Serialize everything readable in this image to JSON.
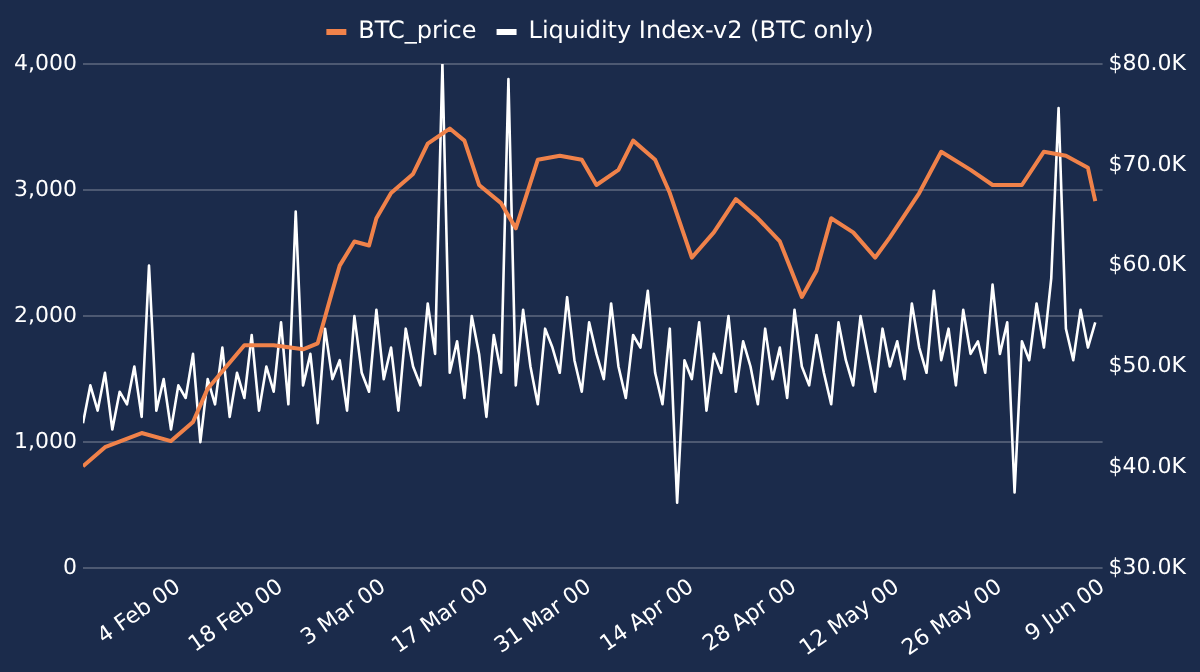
{
  "chart_data": {
    "type": "line",
    "legend": "top",
    "grid": "y",
    "marker": "none",
    "line_style": "solid",
    "xlim": [
      "--01-22",
      "--06-09"
    ],
    "xticks": [
      {
        "value": "--02-04",
        "label": "4 Feb 00"
      },
      {
        "value": "--02-18",
        "label": "18 Feb 00"
      },
      {
        "value": "--03-03",
        "label": "3 Mar 00"
      },
      {
        "value": "--03-17",
        "label": "17 Mar 00"
      },
      {
        "value": "--03-31",
        "label": "31 Mar 00"
      },
      {
        "value": "--04-14",
        "label": "14 Apr 00"
      },
      {
        "value": "--04-28",
        "label": "28 Apr 00"
      },
      {
        "value": "--05-12",
        "label": "12 May 00"
      },
      {
        "value": "--05-26",
        "label": "26 May 00"
      },
      {
        "value": "--06-09",
        "label": "9 Jun 00"
      }
    ],
    "ylim": [
      0,
      4000
    ],
    "yticks": [
      0,
      {
        "value": 1000,
        "label": "1,000"
      },
      {
        "value": 2000,
        "label": "2,000"
      },
      {
        "value": 3000,
        "label": "3,000"
      },
      {
        "value": 4000,
        "label": "4,000"
      }
    ],
    "y2lim": [
      30000,
      80000
    ],
    "y2ticks": [
      {
        "value": 30000,
        "label": "$30.0K"
      },
      {
        "value": 40000,
        "label": "$40.0K"
      },
      {
        "value": 50000,
        "label": "$50.0K"
      },
      {
        "value": 60000,
        "label": "$60.0K"
      },
      {
        "value": 70000,
        "label": "$70.0K"
      },
      {
        "value": 80000,
        "label": "$80.0K"
      }
    ],
    "series": [
      {
        "name": "BTC_price",
        "color": "#f0824a",
        "axis": "y2",
        "x": [
          "--01-22",
          "--01-25",
          "--01-30",
          "--02-03",
          "--02-06",
          "--02-08",
          "--02-13",
          "--02-17",
          "--02-21",
          "--02-23",
          "--02-25",
          "--02-26",
          "--02-28",
          "--03-01",
          "--03-02",
          "--03-04",
          "--03-07",
          "--03-09",
          "--03-12",
          "--03-14",
          "--03-16",
          "--03-19",
          "--03-21",
          "--03-24",
          "--03-27",
          "--03-30",
          "--04-01",
          "--04-04",
          "--04-06",
          "--04-09",
          "--04-11",
          "--04-14",
          "--04-17",
          "--04-20",
          "--04-23",
          "--04-26",
          "--04-29",
          "--05-01",
          "--05-03",
          "--05-06",
          "--05-09",
          "--05-11",
          "--05-15",
          "--05-18",
          "--05-22",
          "--05-25",
          "--05-29",
          "--06-01",
          "--06-04",
          "--06-07",
          "--06-08"
        ],
        "values": [
          40100,
          42000,
          43400,
          42600,
          44500,
          47800,
          52100,
          52100,
          51700,
          52300,
          57500,
          60000,
          62400,
          62000,
          64700,
          67200,
          69100,
          72100,
          73600,
          72400,
          68000,
          66200,
          63700,
          70500,
          70900,
          70500,
          68000,
          69500,
          72400,
          70500,
          67200,
          60800,
          63300,
          66600,
          64700,
          62400,
          56900,
          59500,
          64700,
          63300,
          60800,
          62800,
          67200,
          71300,
          69500,
          68000,
          68000,
          71300,
          70900,
          69700,
          66400
        ]
      },
      {
        "name": "Liquidity Index-v2 (BTC only)",
        "color": "#ffffff",
        "axis": "y",
        "x": [
          "--01-22",
          "--01-23",
          "--01-24",
          "--01-25",
          "--01-26",
          "--01-27",
          "--01-28",
          "--01-29",
          "--01-30",
          "--01-31",
          "--02-01",
          "--02-02",
          "--02-03",
          "--02-04",
          "--02-05",
          "--02-06",
          "--02-07",
          "--02-08",
          "--02-09",
          "--02-10",
          "--02-11",
          "--02-12",
          "--02-13",
          "--02-14",
          "--02-15",
          "--02-16",
          "--02-17",
          "--02-18",
          "--02-19",
          "--02-20",
          "--02-21",
          "--02-22",
          "--02-23",
          "--02-24",
          "--02-25",
          "--02-26",
          "--02-27",
          "--02-28",
          "--02-29",
          "--03-01",
          "--03-02",
          "--03-03",
          "--03-04",
          "--03-05",
          "--03-06",
          "--03-07",
          "--03-08",
          "--03-09",
          "--03-10",
          "--03-11",
          "--03-12",
          "--03-13",
          "--03-14",
          "--03-15",
          "--03-16",
          "--03-17",
          "--03-18",
          "--03-19",
          "--03-20",
          "--03-21",
          "--03-22",
          "--03-23",
          "--03-24",
          "--03-25",
          "--03-26",
          "--03-27",
          "--03-28",
          "--03-29",
          "--03-30",
          "--03-31",
          "--04-01",
          "--04-02",
          "--04-03",
          "--04-04",
          "--04-05",
          "--04-06",
          "--04-07",
          "--04-08",
          "--04-09",
          "--04-10",
          "--04-11",
          "--04-12",
          "--04-13",
          "--04-14",
          "--04-15",
          "--04-16",
          "--04-17",
          "--04-18",
          "--04-19",
          "--04-20",
          "--04-21",
          "--04-22",
          "--04-23",
          "--04-24",
          "--04-25",
          "--04-26",
          "--04-27",
          "--04-28",
          "--04-29",
          "--04-30",
          "--05-01",
          "--05-02",
          "--05-03",
          "--05-04",
          "--05-05",
          "--05-06",
          "--05-07",
          "--05-08",
          "--05-09",
          "--05-10",
          "--05-11",
          "--05-12",
          "--05-13",
          "--05-14",
          "--05-15",
          "--05-16",
          "--05-17",
          "--05-18",
          "--05-19",
          "--05-20",
          "--05-21",
          "--05-22",
          "--05-23",
          "--05-24",
          "--05-25",
          "--05-26",
          "--05-27",
          "--05-28",
          "--05-29",
          "--05-30",
          "--05-31",
          "--06-01",
          "--06-02",
          "--06-03",
          "--06-04",
          "--06-05",
          "--06-06",
          "--06-07",
          "--06-08"
        ],
        "values": [
          1150,
          1450,
          1250,
          1550,
          1100,
          1400,
          1300,
          1600,
          1200,
          2400,
          1250,
          1500,
          1100,
          1450,
          1350,
          1700,
          1000,
          1500,
          1300,
          1750,
          1200,
          1550,
          1350,
          1850,
          1250,
          1600,
          1400,
          1950,
          1300,
          2830,
          1450,
          1700,
          1150,
          1900,
          1500,
          1650,
          1250,
          2000,
          1550,
          1400,
          2050,
          1500,
          1750,
          1250,
          1900,
          1600,
          1450,
          2100,
          1700,
          4000,
          1550,
          1800,
          1350,
          2000,
          1700,
          1200,
          1850,
          1550,
          3880,
          1450,
          2050,
          1600,
          1300,
          1900,
          1750,
          1550,
          2150,
          1650,
          1400,
          1950,
          1700,
          1500,
          2100,
          1600,
          1350,
          1850,
          1750,
          2200,
          1550,
          1300,
          1900,
          520,
          1650,
          1500,
          1950,
          1250,
          1700,
          1550,
          2000,
          1400,
          1800,
          1600,
          1300,
          1900,
          1500,
          1750,
          1350,
          2050,
          1600,
          1450,
          1850,
          1550,
          1300,
          1950,
          1650,
          1450,
          2000,
          1700,
          1400,
          1900,
          1600,
          1800,
          1500,
          2100,
          1750,
          1550,
          2200,
          1650,
          1900,
          1450,
          2050,
          1700,
          1800,
          1550,
          2250,
          1700,
          1950,
          600,
          1800,
          1650,
          2100,
          1750,
          2300,
          3650,
          1900,
          1650,
          2050,
          1750,
          1950
        ]
      }
    ]
  }
}
